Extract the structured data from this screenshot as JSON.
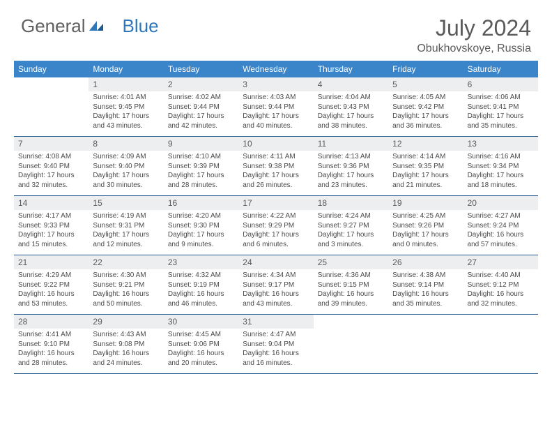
{
  "brand": {
    "word1": "General",
    "word2": "Blue"
  },
  "title": "July 2024",
  "location": "Obukhovskoye, Russia",
  "weekdays": [
    "Sunday",
    "Monday",
    "Tuesday",
    "Wednesday",
    "Thursday",
    "Friday",
    "Saturday"
  ],
  "colors": {
    "headerBg": "#3a85c9",
    "headerText": "#ffffff",
    "dayNumBg": "#eceeef",
    "border": "#2a5d8f",
    "brandBlue": "#2f77b8",
    "textGray": "#5a5a5a"
  },
  "weeks": [
    [
      {
        "num": "",
        "lines": []
      },
      {
        "num": "1",
        "lines": [
          "Sunrise: 4:01 AM",
          "Sunset: 9:45 PM",
          "Daylight: 17 hours and 43 minutes."
        ]
      },
      {
        "num": "2",
        "lines": [
          "Sunrise: 4:02 AM",
          "Sunset: 9:44 PM",
          "Daylight: 17 hours and 42 minutes."
        ]
      },
      {
        "num": "3",
        "lines": [
          "Sunrise: 4:03 AM",
          "Sunset: 9:44 PM",
          "Daylight: 17 hours and 40 minutes."
        ]
      },
      {
        "num": "4",
        "lines": [
          "Sunrise: 4:04 AM",
          "Sunset: 9:43 PM",
          "Daylight: 17 hours and 38 minutes."
        ]
      },
      {
        "num": "5",
        "lines": [
          "Sunrise: 4:05 AM",
          "Sunset: 9:42 PM",
          "Daylight: 17 hours and 36 minutes."
        ]
      },
      {
        "num": "6",
        "lines": [
          "Sunrise: 4:06 AM",
          "Sunset: 9:41 PM",
          "Daylight: 17 hours and 35 minutes."
        ]
      }
    ],
    [
      {
        "num": "7",
        "lines": [
          "Sunrise: 4:08 AM",
          "Sunset: 9:40 PM",
          "Daylight: 17 hours and 32 minutes."
        ]
      },
      {
        "num": "8",
        "lines": [
          "Sunrise: 4:09 AM",
          "Sunset: 9:40 PM",
          "Daylight: 17 hours and 30 minutes."
        ]
      },
      {
        "num": "9",
        "lines": [
          "Sunrise: 4:10 AM",
          "Sunset: 9:39 PM",
          "Daylight: 17 hours and 28 minutes."
        ]
      },
      {
        "num": "10",
        "lines": [
          "Sunrise: 4:11 AM",
          "Sunset: 9:38 PM",
          "Daylight: 17 hours and 26 minutes."
        ]
      },
      {
        "num": "11",
        "lines": [
          "Sunrise: 4:13 AM",
          "Sunset: 9:36 PM",
          "Daylight: 17 hours and 23 minutes."
        ]
      },
      {
        "num": "12",
        "lines": [
          "Sunrise: 4:14 AM",
          "Sunset: 9:35 PM",
          "Daylight: 17 hours and 21 minutes."
        ]
      },
      {
        "num": "13",
        "lines": [
          "Sunrise: 4:16 AM",
          "Sunset: 9:34 PM",
          "Daylight: 17 hours and 18 minutes."
        ]
      }
    ],
    [
      {
        "num": "14",
        "lines": [
          "Sunrise: 4:17 AM",
          "Sunset: 9:33 PM",
          "Daylight: 17 hours and 15 minutes."
        ]
      },
      {
        "num": "15",
        "lines": [
          "Sunrise: 4:19 AM",
          "Sunset: 9:31 PM",
          "Daylight: 17 hours and 12 minutes."
        ]
      },
      {
        "num": "16",
        "lines": [
          "Sunrise: 4:20 AM",
          "Sunset: 9:30 PM",
          "Daylight: 17 hours and 9 minutes."
        ]
      },
      {
        "num": "17",
        "lines": [
          "Sunrise: 4:22 AM",
          "Sunset: 9:29 PM",
          "Daylight: 17 hours and 6 minutes."
        ]
      },
      {
        "num": "18",
        "lines": [
          "Sunrise: 4:24 AM",
          "Sunset: 9:27 PM",
          "Daylight: 17 hours and 3 minutes."
        ]
      },
      {
        "num": "19",
        "lines": [
          "Sunrise: 4:25 AM",
          "Sunset: 9:26 PM",
          "Daylight: 17 hours and 0 minutes."
        ]
      },
      {
        "num": "20",
        "lines": [
          "Sunrise: 4:27 AM",
          "Sunset: 9:24 PM",
          "Daylight: 16 hours and 57 minutes."
        ]
      }
    ],
    [
      {
        "num": "21",
        "lines": [
          "Sunrise: 4:29 AM",
          "Sunset: 9:22 PM",
          "Daylight: 16 hours and 53 minutes."
        ]
      },
      {
        "num": "22",
        "lines": [
          "Sunrise: 4:30 AM",
          "Sunset: 9:21 PM",
          "Daylight: 16 hours and 50 minutes."
        ]
      },
      {
        "num": "23",
        "lines": [
          "Sunrise: 4:32 AM",
          "Sunset: 9:19 PM",
          "Daylight: 16 hours and 46 minutes."
        ]
      },
      {
        "num": "24",
        "lines": [
          "Sunrise: 4:34 AM",
          "Sunset: 9:17 PM",
          "Daylight: 16 hours and 43 minutes."
        ]
      },
      {
        "num": "25",
        "lines": [
          "Sunrise: 4:36 AM",
          "Sunset: 9:15 PM",
          "Daylight: 16 hours and 39 minutes."
        ]
      },
      {
        "num": "26",
        "lines": [
          "Sunrise: 4:38 AM",
          "Sunset: 9:14 PM",
          "Daylight: 16 hours and 35 minutes."
        ]
      },
      {
        "num": "27",
        "lines": [
          "Sunrise: 4:40 AM",
          "Sunset: 9:12 PM",
          "Daylight: 16 hours and 32 minutes."
        ]
      }
    ],
    [
      {
        "num": "28",
        "lines": [
          "Sunrise: 4:41 AM",
          "Sunset: 9:10 PM",
          "Daylight: 16 hours and 28 minutes."
        ]
      },
      {
        "num": "29",
        "lines": [
          "Sunrise: 4:43 AM",
          "Sunset: 9:08 PM",
          "Daylight: 16 hours and 24 minutes."
        ]
      },
      {
        "num": "30",
        "lines": [
          "Sunrise: 4:45 AM",
          "Sunset: 9:06 PM",
          "Daylight: 16 hours and 20 minutes."
        ]
      },
      {
        "num": "31",
        "lines": [
          "Sunrise: 4:47 AM",
          "Sunset: 9:04 PM",
          "Daylight: 16 hours and 16 minutes."
        ]
      },
      {
        "num": "",
        "lines": []
      },
      {
        "num": "",
        "lines": []
      },
      {
        "num": "",
        "lines": []
      }
    ]
  ]
}
